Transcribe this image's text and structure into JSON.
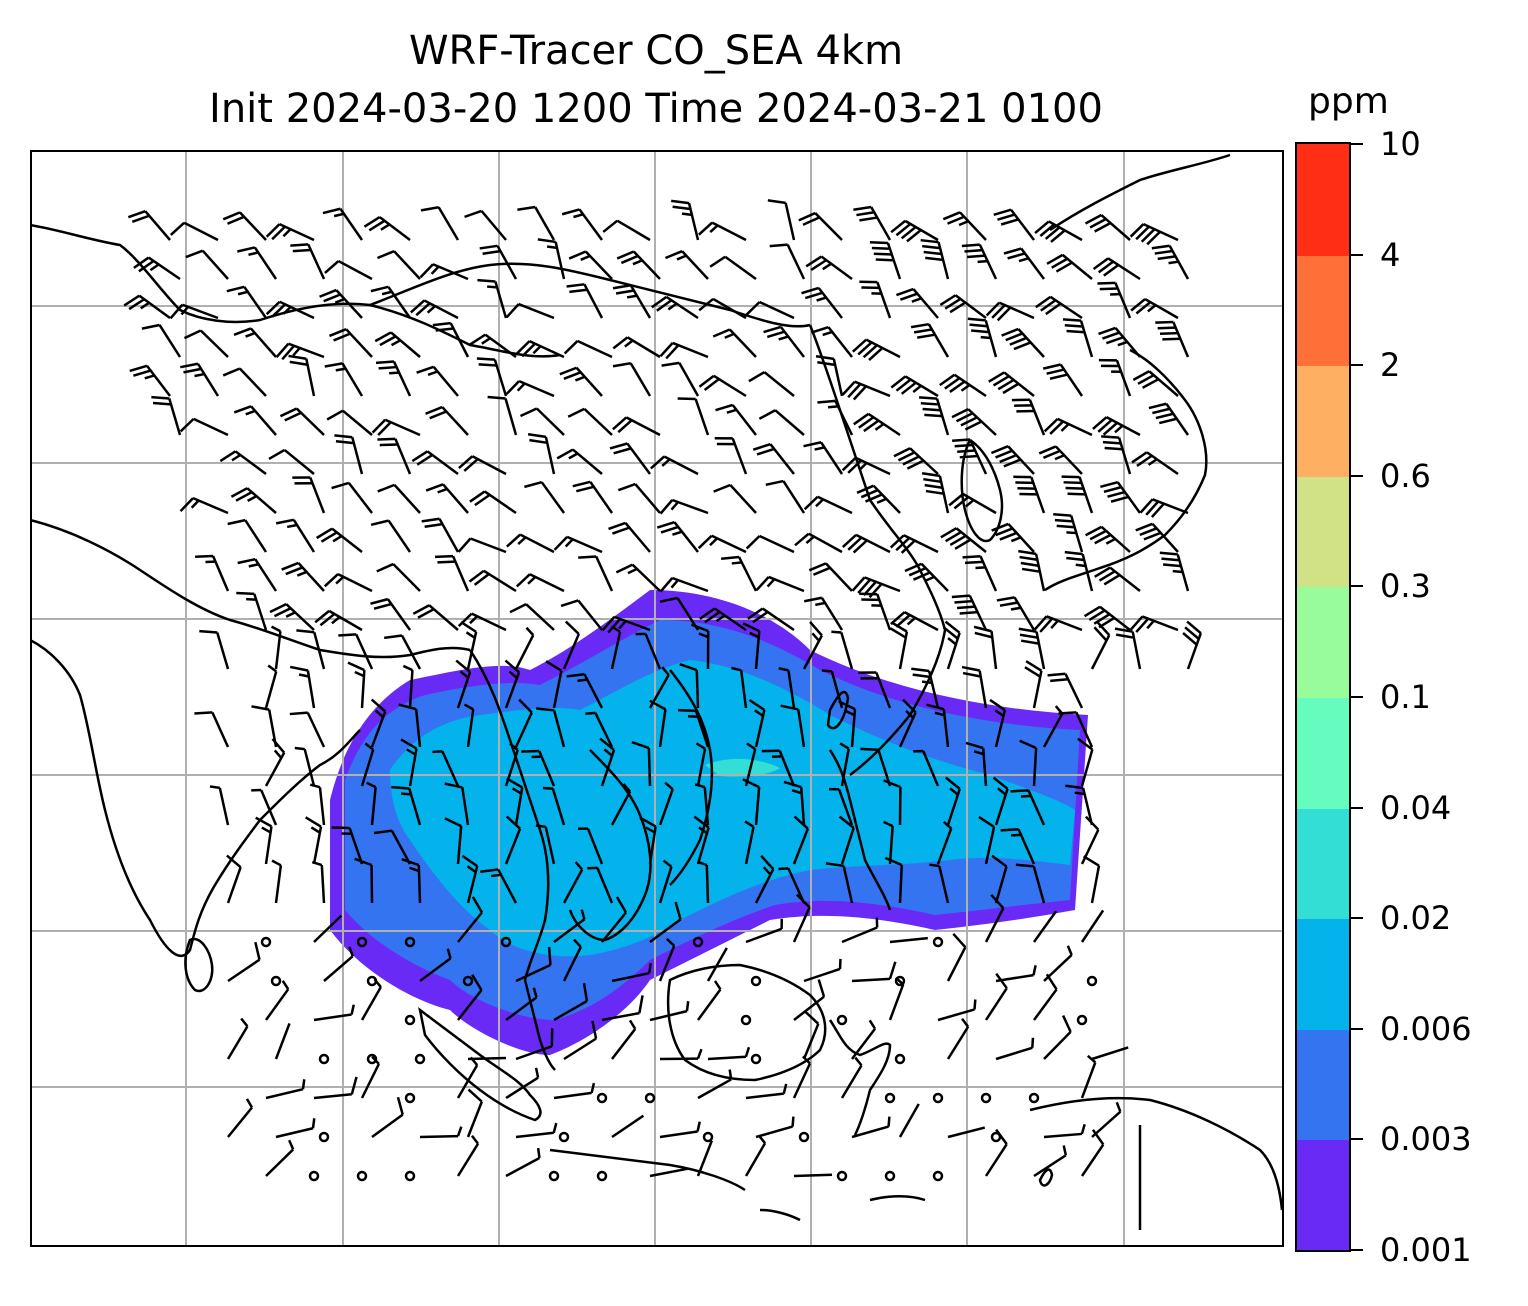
{
  "title": {
    "line1": "WRF-Tracer CO_SEA 4km",
    "line2": "Init 2024-03-20 1200 Time 2024-03-21 0100"
  },
  "colorbar": {
    "unit": "ppm",
    "levels": [
      "0.001",
      "0.003",
      "0.006",
      "0.02",
      "0.04",
      "0.1",
      "0.3",
      "0.6",
      "2",
      "4",
      "10"
    ],
    "colors": [
      "#6a2af5",
      "#3574f0",
      "#04b3ec",
      "#33dfd5",
      "#66fbbf",
      "#98fc9a",
      "#d0e285",
      "#feaf61",
      "#ff7038",
      "#ff2e14"
    ]
  },
  "map": {
    "gridlines": true,
    "grid_color": "#b0b0b0",
    "coastline_color": "#000000",
    "barb_color": "#000000"
  }
}
